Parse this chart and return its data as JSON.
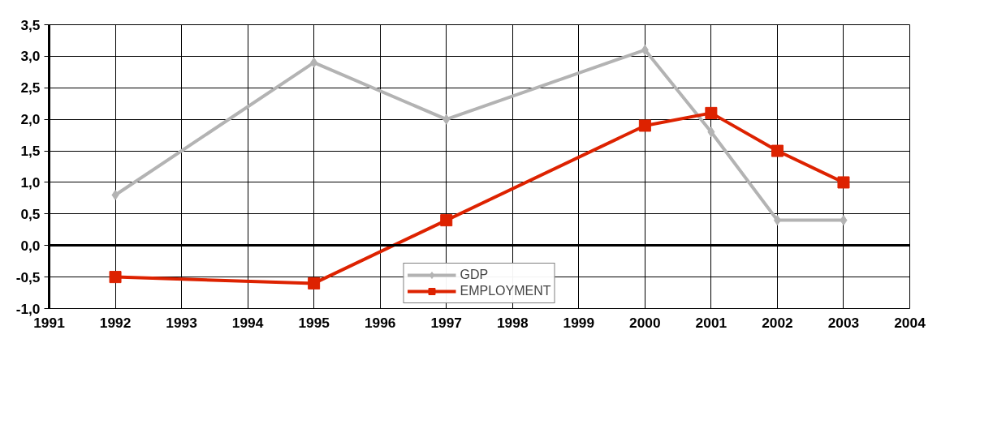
{
  "chart_data": {
    "type": "line",
    "x": [
      1992,
      1995,
      1997,
      2000,
      2001,
      2002,
      2003
    ],
    "series": [
      {
        "name": "GDP",
        "color": "#b3b3b3",
        "marker": "diamond",
        "values": [
          0.8,
          2.9,
          2.0,
          3.1,
          1.8,
          0.4,
          0.4
        ]
      },
      {
        "name": "EMPLOYMENT",
        "color": "#dd2200",
        "marker": "square",
        "values": [
          -0.5,
          -0.6,
          0.4,
          1.9,
          2.1,
          1.5,
          1.0
        ]
      }
    ],
    "xlim": [
      1991,
      2004
    ],
    "xticks": [
      1991,
      1992,
      1993,
      1994,
      1995,
      1996,
      1997,
      1998,
      1999,
      2000,
      2001,
      2002,
      2003,
      2004
    ],
    "ylim": [
      -1.0,
      3.5
    ],
    "yticks": [
      {
        "value": -1.0,
        "label": "-1,0"
      },
      {
        "value": -0.5,
        "label": "-0,5"
      },
      {
        "value": 0.0,
        "label": "0,0"
      },
      {
        "value": 0.5,
        "label": "0,5"
      },
      {
        "value": 1.0,
        "label": "1,0"
      },
      {
        "value": 1.5,
        "label": "1,5"
      },
      {
        "value": 2.0,
        "label": "2,0"
      },
      {
        "value": 2.5,
        "label": "2,5"
      },
      {
        "value": 3.0,
        "label": "3,0"
      },
      {
        "value": 3.5,
        "label": "3,5"
      }
    ],
    "grid": true,
    "legend": "bottom",
    "line_style": "solid"
  }
}
